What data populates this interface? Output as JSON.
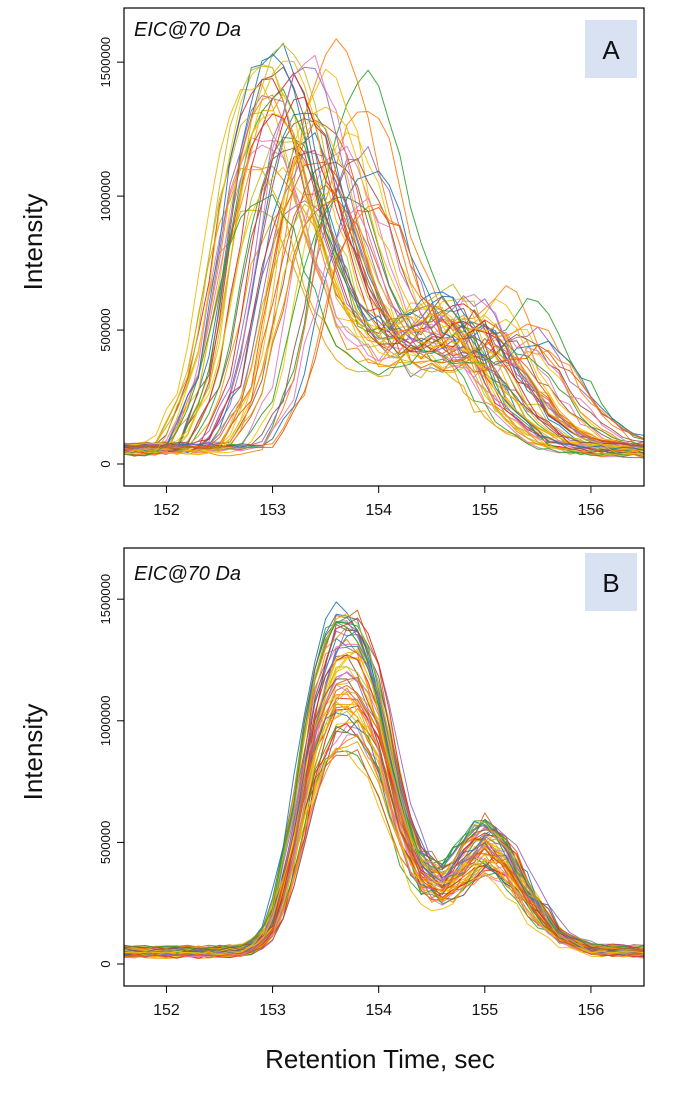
{
  "chart_data": [
    {
      "type": "line",
      "panel_label": "A",
      "annotation": "EIC@70 Da",
      "ylabel": "Intensity",
      "xlabel": "",
      "xlim": [
        151.6,
        156.5
      ],
      "ylim": [
        0,
        1620000
      ],
      "xticks": [
        152,
        153,
        154,
        155,
        156
      ],
      "yticks": [
        0,
        500000,
        1000000,
        1500000
      ],
      "n_series": 60,
      "template": {
        "x": [
          151.6,
          152.0,
          152.3,
          152.6,
          152.9,
          153.1,
          153.3,
          153.5,
          153.7,
          154.0,
          154.3,
          154.6,
          154.8,
          155.0,
          155.2,
          155.5,
          155.8,
          156.1,
          156.5
        ],
        "y": [
          55000,
          55000,
          62000,
          300000,
          950000,
          1200000,
          1250000,
          1100000,
          800000,
          500000,
          420000,
          460000,
          520000,
          480000,
          340000,
          180000,
          90000,
          60000,
          50000
        ]
      },
      "series_shift_range": [
        -0.45,
        0.75
      ],
      "series_scale_range": [
        0.75,
        1.3
      ],
      "colors": [
        "#e6a000",
        "#f2c500",
        "#d62728",
        "#ff7f0e",
        "#2ca02c",
        "#1f77b4",
        "#9467bd",
        "#e377c2",
        "#8c564b",
        "#bcbd22",
        "#f5b800",
        "#e05a10"
      ]
    },
    {
      "type": "line",
      "panel_label": "B",
      "annotation": "EIC@70 Da",
      "ylabel": "Intensity",
      "xlabel": "Retention Time, sec",
      "xlim": [
        151.6,
        156.5
      ],
      "ylim": [
        0,
        1620000
      ],
      "xticks": [
        152,
        153,
        154,
        155,
        156
      ],
      "yticks": [
        0,
        500000,
        1000000,
        1500000
      ],
      "n_series": 60,
      "template": {
        "x": [
          151.6,
          152.0,
          152.5,
          152.8,
          153.0,
          153.2,
          153.4,
          153.6,
          153.8,
          154.0,
          154.2,
          154.4,
          154.6,
          154.8,
          155.0,
          155.2,
          155.4,
          155.7,
          156.0,
          156.5
        ],
        "y": [
          50000,
          50000,
          50000,
          60000,
          150000,
          500000,
          1000000,
          1250000,
          1250000,
          1050000,
          650000,
          400000,
          340000,
          420000,
          520000,
          460000,
          300000,
          120000,
          60000,
          50000
        ]
      },
      "series_shift_range": [
        -0.06,
        0.06
      ],
      "series_scale_range": [
        0.68,
        1.2
      ],
      "colors": [
        "#e6a000",
        "#f2c500",
        "#d62728",
        "#ff7f0e",
        "#2ca02c",
        "#1f77b4",
        "#9467bd",
        "#e377c2",
        "#8c564b",
        "#bcbd22",
        "#f5b800",
        "#e05a10"
      ]
    }
  ]
}
